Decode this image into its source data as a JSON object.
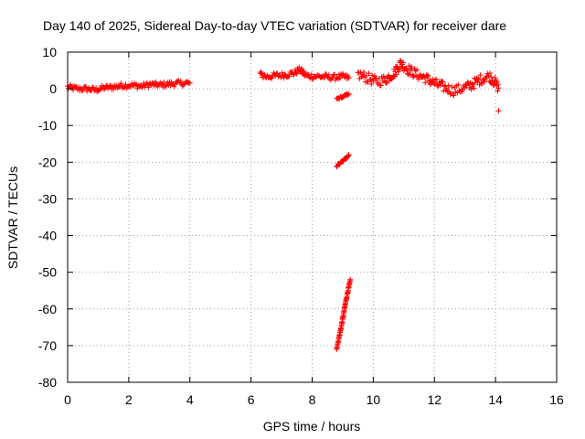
{
  "chart_data": {
    "type": "scatter",
    "title": "Day 140 of 2025, Sidereal Day-to-day VTEC variation (SDTVAR) for receiver dare",
    "xlabel": "GPS time / hours",
    "ylabel": "SDTVAR / TECUs",
    "xlim": [
      0,
      16
    ],
    "ylim": [
      -80,
      10
    ],
    "xticks": [
      0,
      2,
      4,
      6,
      8,
      10,
      12,
      14,
      16
    ],
    "yticks": [
      10,
      0,
      -10,
      -20,
      -30,
      -40,
      -50,
      -60,
      -70,
      -80
    ],
    "grid": true,
    "marker": "plus",
    "color": "#ff0000",
    "segments": [
      {
        "x": [
          0.0,
          0.3,
          0.6,
          0.9,
          1.2,
          1.5,
          1.8,
          2.1,
          2.4,
          2.7,
          3.0,
          3.3,
          3.6,
          4.0
        ],
        "y": [
          0.5,
          0.0,
          0.0,
          -0.3,
          0.3,
          0.5,
          0.9,
          1.0,
          0.7,
          1.2,
          1.0,
          1.3,
          1.5,
          1.6
        ],
        "spread": 1.5
      },
      {
        "x": [
          6.3,
          6.5,
          6.8,
          7.1,
          7.4,
          7.6,
          7.8,
          8.1,
          8.4,
          8.7,
          9.0,
          9.2
        ],
        "y": [
          4.0,
          3.3,
          3.6,
          3.8,
          4.3,
          5.2,
          3.6,
          3.4,
          3.3,
          3.1,
          3.3,
          3.0
        ],
        "spread": 1.6
      },
      {
        "x": [
          8.8,
          9.0,
          9.2
        ],
        "y": [
          -2.7,
          -2.2,
          -1.4
        ],
        "spread": 0.6
      },
      {
        "x": [
          8.8,
          9.0,
          9.2
        ],
        "y": [
          -21.0,
          -19.8,
          -18.0
        ],
        "spread": 0.6
      },
      {
        "x": [
          8.8,
          8.95,
          9.1,
          9.25
        ],
        "y": [
          -71.0,
          -65.0,
          -58.0,
          -52.0
        ],
        "spread": 0.4
      },
      {
        "x": [
          9.5,
          9.8,
          10.1,
          10.4,
          10.7,
          10.9,
          11.1,
          11.4,
          11.7,
          12.0,
          12.3,
          12.6,
          12.9,
          13.2,
          13.5,
          13.8,
          14.0,
          14.1
        ],
        "y": [
          4.0,
          3.0,
          2.0,
          2.5,
          4.5,
          7.0,
          5.5,
          4.0,
          3.0,
          1.5,
          0.5,
          -0.5,
          0.0,
          1.0,
          2.5,
          3.5,
          1.5,
          0.2
        ],
        "spread": 2.8
      },
      {
        "x": [
          14.1
        ],
        "y": [
          -6.0
        ],
        "spread": 0.0
      }
    ]
  }
}
